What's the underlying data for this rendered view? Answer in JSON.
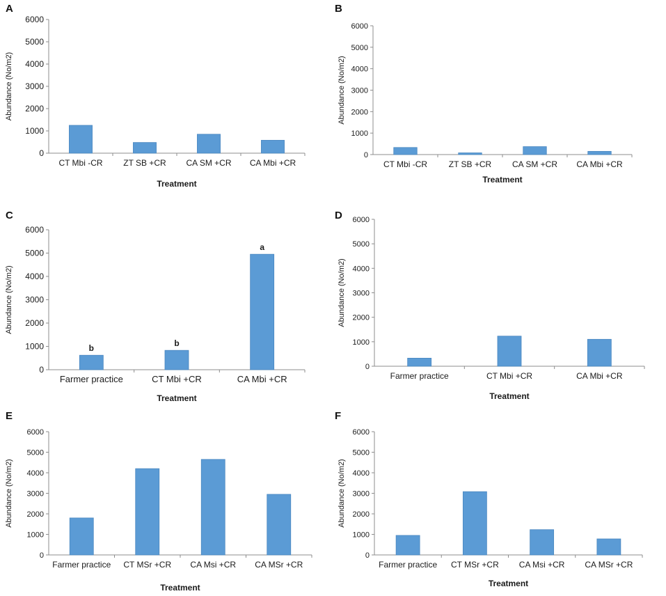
{
  "figure": {
    "panel_letters": [
      "A",
      "B",
      "C",
      "D",
      "E",
      "F"
    ]
  },
  "colors": {
    "bar": "#5b9bd5",
    "bar_edge": "#4a87c0",
    "axis": "#8c8c8c",
    "text": "#1a1a1a"
  },
  "chart_data": [
    {
      "panel": "A",
      "type": "bar",
      "title": "",
      "xlabel": "Treatment",
      "ylabel": "Abundance (No/m2)",
      "ylim": [
        0,
        6000
      ],
      "yticks": [
        0,
        1000,
        2000,
        3000,
        4000,
        5000,
        6000
      ],
      "categories": [
        "CT Mbi -CR",
        "ZT SB +CR",
        "CA SM +CR",
        "CA Mbi +CR"
      ],
      "values": [
        1250,
        480,
        850,
        580
      ],
      "bar_labels": [],
      "grid": false,
      "legend": "none"
    },
    {
      "panel": "B",
      "type": "bar",
      "title": "",
      "xlabel": "Treatment",
      "ylabel": "Abundance (No/m2)",
      "ylim": [
        0,
        6000
      ],
      "yticks": [
        0,
        1000,
        2000,
        3000,
        4000,
        5000,
        6000
      ],
      "categories": [
        "CT Mbi -CR",
        "ZT SB +CR",
        "CA SM +CR",
        "CA Mbi +CR"
      ],
      "values": [
        330,
        80,
        370,
        150
      ],
      "bar_labels": [],
      "grid": false,
      "legend": "none"
    },
    {
      "panel": "C",
      "type": "bar",
      "title": "",
      "xlabel": "Treatment",
      "ylabel": "Abundance (No/m2)",
      "ylim": [
        0,
        6000
      ],
      "yticks": [
        0,
        1000,
        2000,
        3000,
        4000,
        5000,
        6000
      ],
      "categories": [
        "Farmer practice",
        "CT Mbi +CR",
        "CA Mbi +CR"
      ],
      "values": [
        620,
        830,
        4950
      ],
      "bar_labels": [
        "b",
        "b",
        "a"
      ],
      "grid": false,
      "legend": "none"
    },
    {
      "panel": "D",
      "type": "bar",
      "title": "",
      "xlabel": "Treatment",
      "ylabel": "Abundance (No/m2)",
      "ylim": [
        0,
        6000
      ],
      "yticks": [
        0,
        1000,
        2000,
        3000,
        4000,
        5000,
        6000
      ],
      "categories": [
        "Farmer practice",
        "CT Mbi +CR",
        "CA Mbi +CR"
      ],
      "values": [
        330,
        1230,
        1100
      ],
      "bar_labels": [],
      "grid": false,
      "legend": "none"
    },
    {
      "panel": "E",
      "type": "bar",
      "title": "",
      "xlabel": "Treatment",
      "ylabel": "Abundance (No/m2)",
      "ylim": [
        0,
        6000
      ],
      "yticks": [
        0,
        1000,
        2000,
        3000,
        4000,
        5000,
        6000
      ],
      "categories": [
        "Farmer practice",
        "CT MSr +CR",
        "CA Msi +CR",
        "CA MSr +CR"
      ],
      "values": [
        1800,
        4200,
        4650,
        2950
      ],
      "bar_labels": [],
      "grid": false,
      "legend": "none"
    },
    {
      "panel": "F",
      "type": "bar",
      "title": "",
      "xlabel": "Treatment",
      "ylabel": "Abundance (No/m2)",
      "ylim": [
        0,
        6000
      ],
      "yticks": [
        0,
        1000,
        2000,
        3000,
        4000,
        5000,
        6000
      ],
      "categories": [
        "Farmer practice",
        "CT MSr +CR",
        "CA Msi +CR",
        "CA MSr +CR"
      ],
      "values": [
        950,
        3080,
        1230,
        780
      ],
      "bar_labels": [],
      "grid": false,
      "legend": "none"
    }
  ]
}
